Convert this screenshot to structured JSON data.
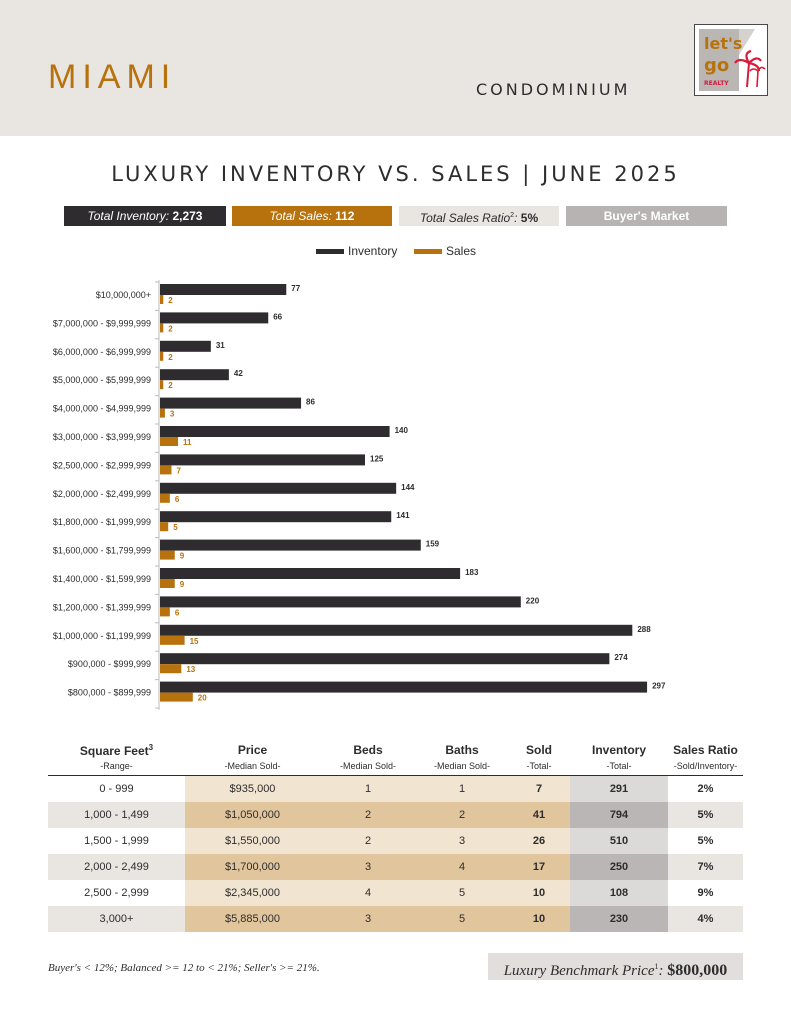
{
  "header": {
    "city": "MIAMI",
    "property_type": "CONDOMINIUM",
    "logo_text": "let's go",
    "logo_subtext": "REALTY"
  },
  "title": "LUXURY INVENTORY VS. SALES | JUNE 2025",
  "stats": {
    "inventory_label": "Total Inventory:",
    "inventory_value": "2,273",
    "sales_label": "Total Sales:",
    "sales_value": "112",
    "ratio_label": "Total Sales Ratio",
    "ratio_sup": "2",
    "ratio_colon": ":",
    "ratio_value": "5%",
    "market": "Buyer's Market"
  },
  "colors": {
    "inventory": "#2e2c2e",
    "sales": "#b8720d",
    "header_bg": "#e9e5e0",
    "accent": "#b8720d"
  },
  "chart_data": {
    "type": "bar",
    "orientation": "horizontal",
    "categories": [
      "$10,000,000+",
      "$7,000,000 - $9,999,999",
      "$6,000,000 - $6,999,999",
      "$5,000,000 - $5,999,999",
      "$4,000,000 - $4,999,999",
      "$3,000,000 - $3,999,999",
      "$2,500,000 - $2,999,999",
      "$2,000,000 - $2,499,999",
      "$1,800,000 - $1,999,999",
      "$1,600,000 - $1,799,999",
      "$1,400,000 - $1,599,999",
      "$1,200,000 - $1,399,999",
      "$1,000,000 - $1,199,999",
      "$900,000 - $999,999",
      "$800,000 - $899,999"
    ],
    "series": [
      {
        "name": "Inventory",
        "values": [
          77,
          66,
          31,
          42,
          86,
          140,
          125,
          144,
          141,
          159,
          183,
          220,
          288,
          274,
          297
        ]
      },
      {
        "name": "Sales",
        "values": [
          2,
          2,
          2,
          2,
          3,
          11,
          7,
          6,
          5,
          9,
          9,
          6,
          15,
          13,
          20
        ]
      }
    ],
    "legend_position": "top-center",
    "grid": false,
    "xlim": [
      0,
      310
    ]
  },
  "table": {
    "headers": [
      {
        "title": "Square Feet",
        "sup": "3",
        "sub": "-Range-"
      },
      {
        "title": "Price",
        "sup": "",
        "sub": "-Median Sold-"
      },
      {
        "title": "Beds",
        "sup": "",
        "sub": "-Median Sold-"
      },
      {
        "title": "Baths",
        "sup": "",
        "sub": "-Median Sold-"
      },
      {
        "title": "Sold",
        "sup": "",
        "sub": "-Total-"
      },
      {
        "title": "Inventory",
        "sup": "",
        "sub": "-Total-"
      },
      {
        "title": "Sales Ratio",
        "sup": "",
        "sub": "-Sold/Inventory-"
      }
    ],
    "rows": [
      [
        "0 - 999",
        "$935,000",
        "1",
        "1",
        "7",
        "291",
        "2%"
      ],
      [
        "1,000 - 1,499",
        "$1,050,000",
        "2",
        "2",
        "41",
        "794",
        "5%"
      ],
      [
        "1,500 - 1,999",
        "$1,550,000",
        "2",
        "3",
        "26",
        "510",
        "5%"
      ],
      [
        "2,000 - 2,499",
        "$1,700,000",
        "3",
        "4",
        "17",
        "250",
        "7%"
      ],
      [
        "2,500 - 2,999",
        "$2,345,000",
        "4",
        "5",
        "10",
        "108",
        "9%"
      ],
      [
        "3,000+",
        "$5,885,000",
        "3",
        "5",
        "10",
        "230",
        "4%"
      ]
    ]
  },
  "footer": {
    "note": "Buyer's < 12%;   Balanced >= 12 to < 21%; Seller's >= 21%.",
    "benchmark_label": "Luxury Benchmark Price",
    "benchmark_sup": "1",
    "benchmark_colon": ":",
    "benchmark_value": "$800,000"
  }
}
